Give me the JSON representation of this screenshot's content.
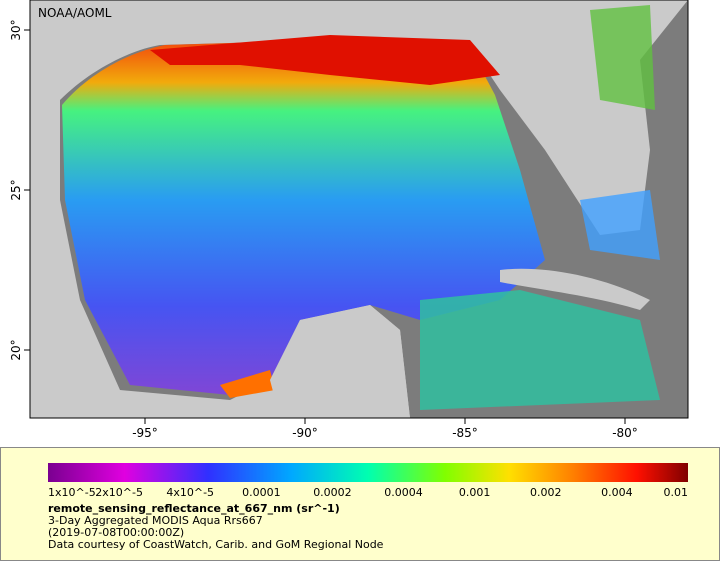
{
  "map": {
    "credit": "NOAA/AOML",
    "x_ticks": [
      "-95°",
      "-90°",
      "-85°",
      "-80°"
    ],
    "y_ticks": [
      "30°",
      "25°",
      "20°"
    ],
    "colorbar_labels": [
      "1x10^-5",
      "2x10^-5",
      "4x10^-5",
      "0.0001",
      "0.0002",
      "0.0004",
      "0.001",
      "0.002",
      "0.004",
      "0.01"
    ],
    "variable": "remote_sensing_reflectance_at_667_nm (sr^-1)",
    "description": "3-Day Aggregated MODIS Aqua Rrs667",
    "time": "(2019-07-08T00:00:00Z)",
    "source": "Data courtesy of CoastWatch, Carib. and GoM Regional Node"
  }
}
